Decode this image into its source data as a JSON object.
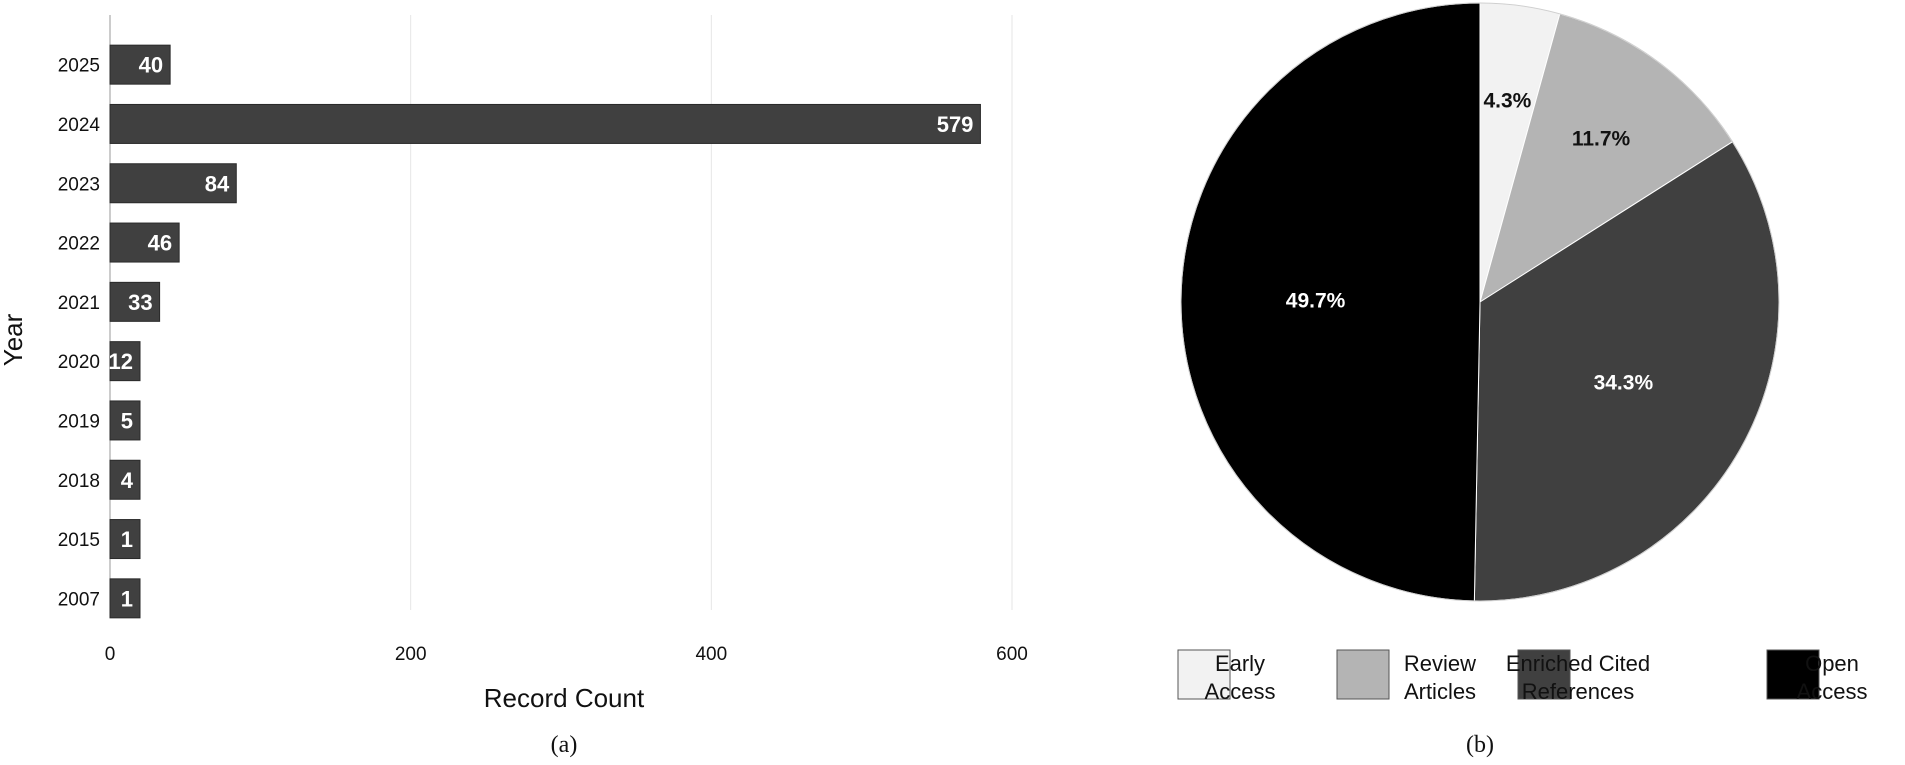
{
  "chart_data": [
    {
      "type": "bar",
      "orientation": "horizontal",
      "categories": [
        "2025",
        "2024",
        "2023",
        "2022",
        "2021",
        "2020",
        "2019",
        "2018",
        "2015",
        "2007"
      ],
      "values": [
        40,
        579,
        84,
        46,
        33,
        12,
        5,
        4,
        1,
        1
      ],
      "xlabel": "Record Count",
      "ylabel": "Year",
      "xticks": [
        "0",
        "200",
        "400",
        "600"
      ],
      "xlim": [
        0,
        600
      ],
      "grid": "vertical",
      "bar_color": "#404040",
      "caption": "(a)"
    },
    {
      "type": "pie",
      "slices": [
        {
          "label": "Early Access",
          "value": 4.3,
          "text": "4.3%",
          "color": "#f2f2f2",
          "text_color": "#111111"
        },
        {
          "label": "Review Articles",
          "value": 11.7,
          "text": "11.7%",
          "color": "#b4b4b4",
          "text_color": "#111111"
        },
        {
          "label": "Enriched Cited References",
          "value": 34.3,
          "text": "34.3%",
          "color": "#404040",
          "text_color": "#ffffff"
        },
        {
          "label": "Open Access",
          "value": 49.7,
          "text": "49.7%",
          "color": "#000000",
          "text_color": "#ffffff"
        }
      ],
      "legend": [
        {
          "lines": [
            "Early",
            "Access"
          ]
        },
        {
          "lines": [
            "Review",
            "Articles"
          ]
        },
        {
          "lines": [
            "Enriched Cited",
            "References"
          ]
        },
        {
          "lines": [
            "Open",
            "Access"
          ]
        }
      ],
      "legend_position": "bottom",
      "caption": "(b)"
    }
  ]
}
